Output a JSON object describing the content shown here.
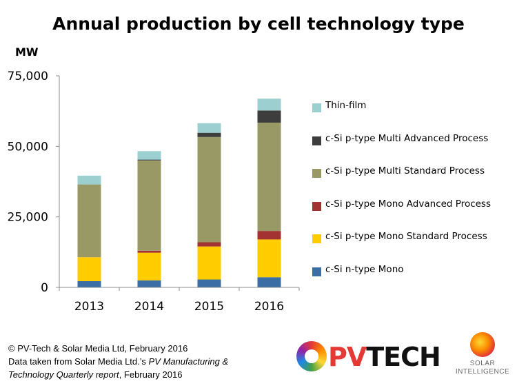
{
  "chart_data": {
    "type": "bar",
    "stacked": true,
    "title": "Annual production by cell technology type",
    "unit_label": "MW",
    "xlabel": "",
    "ylabel": "",
    "ylim": [
      0,
      75000
    ],
    "yticks": [
      0,
      25000,
      50000,
      75000
    ],
    "ytick_labels": [
      "0",
      "25,000",
      "50,000",
      "75,000"
    ],
    "grid": false,
    "legend_position": "right",
    "categories": [
      "2013",
      "2014",
      "2015",
      "2016"
    ],
    "series": [
      {
        "name": "c-Si n-type Mono",
        "color": "#3a6ea5",
        "values": [
          2200,
          2500,
          2800,
          3600
        ]
      },
      {
        "name": "c-Si p-type Mono Standard Process",
        "color": "#ffcc00",
        "values": [
          8500,
          9800,
          11700,
          13400
        ]
      },
      {
        "name": "c-Si p-type Mono Advanced Process",
        "color": "#a33232",
        "values": [
          0,
          700,
          1500,
          3000
        ]
      },
      {
        "name": "c-Si p-type Multi Standard Process",
        "color": "#999966",
        "values": [
          25800,
          32000,
          37300,
          38400
        ]
      },
      {
        "name": "c-Si p-type Multi Advanced Process",
        "color": "#3d3d3d",
        "values": [
          0,
          300,
          1500,
          4300
        ]
      },
      {
        "name": "Thin-film",
        "color": "#9cd0d0",
        "values": [
          3100,
          3000,
          3400,
          4200
        ]
      }
    ]
  },
  "footer": {
    "line1": "© PV-Tech & Solar Media Ltd, February 2016",
    "line2_prefix": "Data taken from Solar Media Ltd.’s ",
    "line2_italic": "PV Manufacturing &",
    "line3_italic": "Technology Quarterly report",
    "line3_suffix": ", February 2016"
  },
  "logos": {
    "pvtech_pv": "PV",
    "pvtech_tech": "TECH",
    "si_line1": "SOLAR",
    "si_line2": "INTELLIGENCE"
  }
}
